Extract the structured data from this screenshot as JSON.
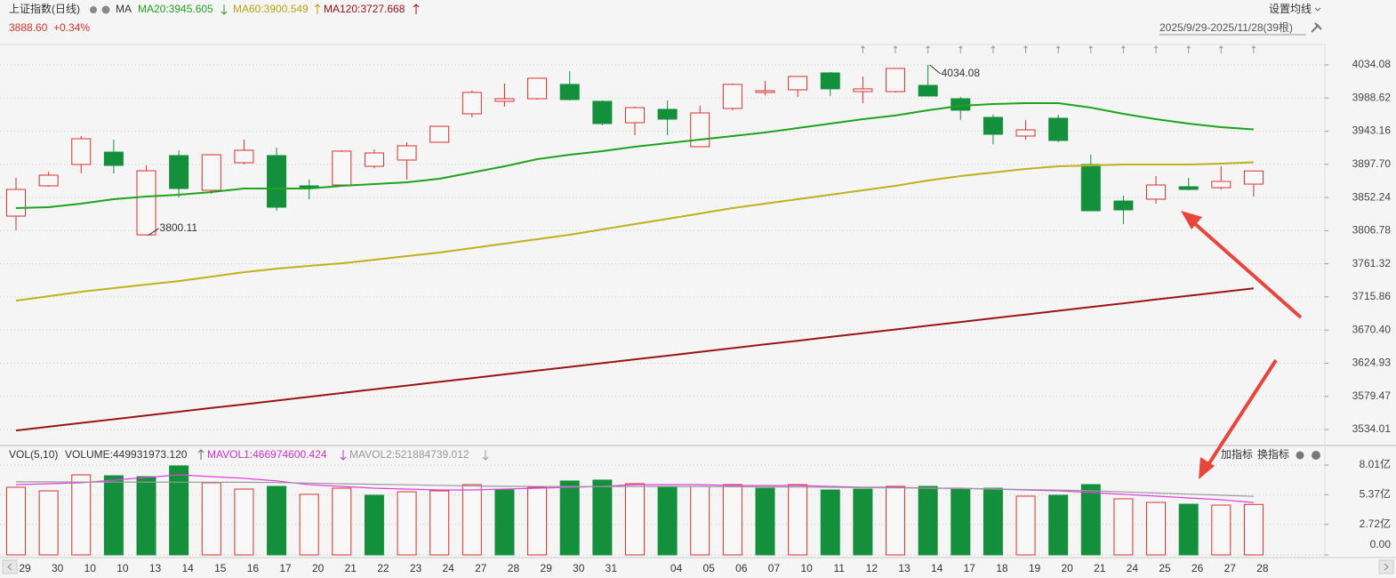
{
  "header": {
    "title": "上证指数(日线)",
    "ma": "MA",
    "ma20": "MA20:3945.605",
    "ma60": "MA60:3900.549",
    "ma120": "MA120:3727.668",
    "price": "3888.60",
    "change": "+0.34%",
    "settings": "设置均线",
    "range": "2025/9/29-2025/11/28(39根)"
  },
  "volume_header": {
    "title": "VOL(5,10)",
    "volume": "VOLUME:449931973.120",
    "mavol1": "MAVOL1:466974600.424",
    "mavol2": "MAVOL2:521884739.012",
    "add": "加指标",
    "switch": "换指标"
  },
  "chart_data": [
    {
      "type": "candlestick",
      "categories": [
        "29",
        "30",
        "10",
        "10",
        "13",
        "14",
        "15",
        "16",
        "17",
        "20",
        "21",
        "22",
        "23",
        "24",
        "27",
        "28",
        "29",
        "30",
        "31",
        null,
        "04",
        "05",
        "06",
        "07",
        "10",
        "11",
        "12",
        "13",
        "14",
        "17",
        "18",
        "19",
        "20",
        "21",
        "24",
        "25",
        "26",
        "27",
        "28"
      ],
      "open": [
        3826.7,
        3868.2,
        3897.5,
        3914.5,
        3801.0,
        3909.7,
        3862.1,
        3899.9,
        3909.7,
        3868.2,
        3869.4,
        3895.0,
        3903.6,
        3928.0,
        3967.0,
        3984.1,
        3987.7,
        4007.3,
        3984.1,
        3954.8,
        3973.1,
        3921.9,
        3974.3,
        3996.3,
        3999.9,
        4023.1,
        3997.5,
        3997.5,
        4006.0,
        3987.7,
        3962.1,
        3936.5,
        3960.9,
        3897.5,
        3847.4,
        3849.9,
        3867.0,
        3865.7,
        3870.6
      ],
      "high": [
        3879.2,
        3887.7,
        3936.5,
        3931.6,
        3896.2,
        3917.0,
        3910.9,
        3931.6,
        3920.6,
        3876.7,
        3917.0,
        3918.2,
        3928.0,
        3949.9,
        3998.7,
        4008.5,
        4015.8,
        4025.6,
        3985.3,
        3976.8,
        3985.3,
        3978.0,
        4008.5,
        4012.1,
        4018.2,
        4024.3,
        4018.2,
        4029.2,
        4034.08,
        3990.2,
        3965.8,
        3958.5,
        3965.8,
        3910.9,
        3854.8,
        3881.6,
        3879.2,
        3895.0,
        3889.2
      ],
      "low": [
        3807.2,
        3867.0,
        3885.3,
        3885.3,
        3800.11,
        3852.3,
        3857.2,
        3897.5,
        3834.0,
        3849.9,
        3869.4,
        3892.6,
        3876.7,
        3928.0,
        3962.1,
        3976.8,
        3986.5,
        3985.3,
        3951.1,
        3937.7,
        3937.7,
        3921.9,
        3971.9,
        3992.6,
        3990.2,
        3991.4,
        3981.6,
        3996.3,
        3991.4,
        3958.5,
        3925.5,
        3931.6,
        3928.0,
        3834.0,
        3815.7,
        3843.8,
        3862.1,
        3863.3,
        3853.5
      ],
      "close": [
        3863.3,
        3882.8,
        3932.8,
        3896.2,
        3888.9,
        3864.5,
        3910.9,
        3917.0,
        3838.9,
        3865.7,
        3915.8,
        3913.3,
        3923.1,
        3949.9,
        3996.3,
        3987.7,
        4015.8,
        3986.5,
        3953.6,
        3975.5,
        3959.7,
        3968.2,
        4007.3,
        3998.7,
        4018.2,
        4001.2,
        4001.2,
        4029.2,
        3991.4,
        3971.9,
        3938.9,
        3945.0,
        3930.4,
        3834.0,
        3835.2,
        3869.4,
        3863.3,
        3874.3,
        3888.6
      ],
      "up_color": "#d9312f",
      "down_color": "#14903d",
      "lines": [
        {
          "color": "#1fa31f",
          "values": [
            3837.7,
            3838.9,
            3843.8,
            3849.9,
            3853.5,
            3856.0,
            3859.7,
            3864.5,
            3864.5,
            3864.5,
            3868.2,
            3870.6,
            3873.1,
            3878.0,
            3886.5,
            3895.0,
            3904.8,
            3910.9,
            3915.8,
            3921.9,
            3926.7,
            3931.6,
            3936.5,
            3941.4,
            3947.5,
            3953.6,
            3959.7,
            3964.6,
            3971.9,
            3978.0,
            3980.4,
            3981.6,
            3981.6,
            3975.5,
            3967.0,
            3959.7,
            3953.6,
            3948.7,
            3945.605
          ]
        },
        {
          "color": "#bdb21c",
          "values": [
            3710.8,
            3716.9,
            3723.0,
            3727.9,
            3732.8,
            3737.6,
            3743.7,
            3749.8,
            3754.7,
            3758.4,
            3762.0,
            3766.9,
            3771.8,
            3776.7,
            3782.8,
            3788.9,
            3795.0,
            3801.1,
            3808.4,
            3815.7,
            3823.0,
            3830.3,
            3837.7,
            3843.8,
            3849.9,
            3856.0,
            3862.1,
            3868.2,
            3875.5,
            3881.6,
            3886.5,
            3891.4,
            3895.0,
            3896.2,
            3897.5,
            3897.5,
            3897.5,
            3898.7,
            3900.549
          ]
        },
        {
          "color": "#9c1515",
          "values": [
            3532.7,
            3537.8,
            3543.0,
            3548.1,
            3553.2,
            3558.4,
            3563.5,
            3568.6,
            3573.7,
            3578.9,
            3584.0,
            3589.1,
            3594.3,
            3599.4,
            3604.5,
            3609.7,
            3614.8,
            3619.9,
            3625.0,
            3630.2,
            3635.3,
            3640.4,
            3645.6,
            3650.7,
            3655.8,
            3661.0,
            3666.1,
            3671.2,
            3676.3,
            3681.5,
            3686.6,
            3691.7,
            3696.9,
            3702.0,
            3707.1,
            3712.3,
            3717.4,
            3722.5,
            3727.668
          ]
        }
      ],
      "annotations": [
        {
          "label": "3800.11",
          "value": 3800.11
        },
        {
          "label": "4034.08",
          "value": 4034.08
        }
      ],
      "ylim": [
        3513.3,
        4062.1
      ],
      "yticks": [
        4034.08,
        3988.62,
        3943.16,
        {
          "value": 3897.7,
          "label": "3897.70"
        },
        3852.24,
        3806.78,
        3761.32,
        3715.86,
        {
          "value": 3670.4,
          "label": "3670.40"
        },
        3624.93,
        3579.47,
        3534.01
      ],
      "grid": true
    },
    {
      "type": "bar",
      "values": [
        6.03,
        5.71,
        7.14,
        7.06,
        6.98,
        7.94,
        6.43,
        5.87,
        6.11,
        5.4,
        5.95,
        5.32,
        5.63,
        5.71,
        6.27,
        5.79,
        6.03,
        6.59,
        6.67,
        6.35,
        6.11,
        6.11,
        6.27,
        5.95,
        6.27,
        5.79,
        5.87,
        6.11,
        6.11,
        5.87,
        5.95,
        5.24,
        5.32,
        6.27,
        5.0,
        4.68,
        4.52,
        4.44,
        4.4993
      ],
      "filled": [
        false,
        false,
        false,
        true,
        true,
        true,
        false,
        false,
        true,
        false,
        false,
        true,
        false,
        false,
        false,
        true,
        false,
        true,
        true,
        false,
        true,
        false,
        false,
        true,
        false,
        true,
        true,
        false,
        true,
        true,
        true,
        false,
        true,
        true,
        false,
        false,
        true,
        false,
        false
      ],
      "up_color": "#d9312f",
      "down_color": "#14903d",
      "lines": [
        {
          "color": "#e040e0",
          "values": [
            6.27,
            6.35,
            6.43,
            6.67,
            6.9,
            7.14,
            6.98,
            6.83,
            6.59,
            6.27,
            6.11,
            5.95,
            5.87,
            5.79,
            5.79,
            5.87,
            5.95,
            6.03,
            6.11,
            6.27,
            6.27,
            6.27,
            6.19,
            6.19,
            6.19,
            6.11,
            6.03,
            6.03,
            5.95,
            5.95,
            5.87,
            5.79,
            5.71,
            5.56,
            5.4,
            5.24,
            5.08,
            4.92,
            4.6697
          ]
        },
        {
          "color": "#9a9a9a",
          "values": [
            6.51,
            6.51,
            6.5,
            6.5,
            6.5,
            6.49,
            6.48,
            6.47,
            6.45,
            6.4,
            6.35,
            6.3,
            6.25,
            6.2,
            6.15,
            6.12,
            6.1,
            6.1,
            6.1,
            6.1,
            6.1,
            6.1,
            6.08,
            6.07,
            6.05,
            6.03,
            6.0,
            5.98,
            5.95,
            5.92,
            5.88,
            5.83,
            5.78,
            5.72,
            5.62,
            5.52,
            5.42,
            5.32,
            5.2188
          ]
        }
      ],
      "ylim": [
        0,
        9.44
      ],
      "yticks": [
        {
          "value": 8.01,
          "label": "8.01亿"
        },
        {
          "value": 5.37,
          "label": "5.37亿"
        },
        {
          "value": 2.72,
          "label": "2.72亿"
        },
        {
          "value": 0,
          "label": "0.00"
        }
      ],
      "grid": true
    }
  ]
}
